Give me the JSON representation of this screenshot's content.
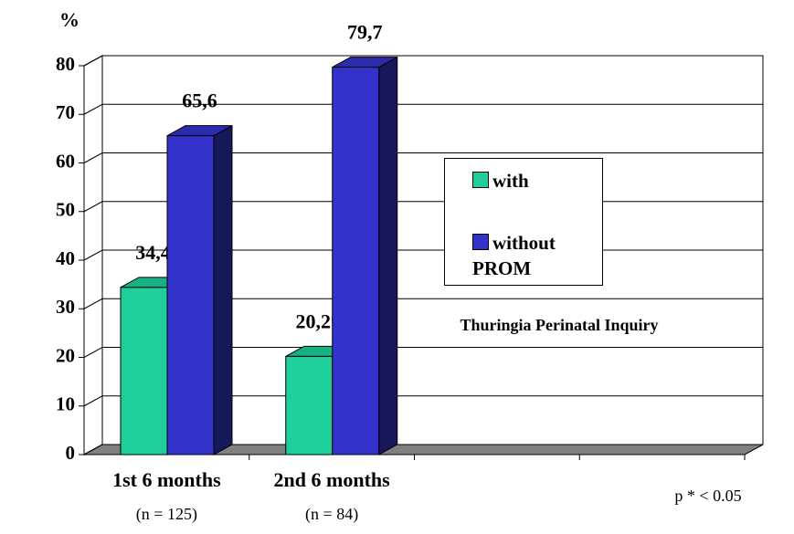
{
  "chart_data": {
    "type": "bar3d",
    "y_label": "%",
    "categories": [
      "1st 6 months",
      "2nd 6 months",
      null,
      null
    ],
    "category_notes": [
      "(n = 125)",
      "(n = 84)",
      null,
      null
    ],
    "series": [
      {
        "name": "with",
        "color": "#1ecf9b",
        "values": [
          34.4,
          20.2,
          null,
          null
        ],
        "value_labels": [
          "34,4",
          "20,2*",
          null,
          null
        ]
      },
      {
        "name": "without PROM",
        "color": "#3333cc",
        "values": [
          65.6,
          79.7,
          null,
          null
        ],
        "value_labels": [
          "65,6",
          "79,7",
          null,
          null
        ]
      }
    ],
    "ylim": [
      0,
      80
    ],
    "yticks": [
      0,
      10,
      20,
      30,
      40,
      50,
      60,
      70,
      80
    ],
    "grid": true,
    "annotations": [
      "Thuringia Perinatal Inquiry",
      "p * < 0.05"
    ]
  }
}
